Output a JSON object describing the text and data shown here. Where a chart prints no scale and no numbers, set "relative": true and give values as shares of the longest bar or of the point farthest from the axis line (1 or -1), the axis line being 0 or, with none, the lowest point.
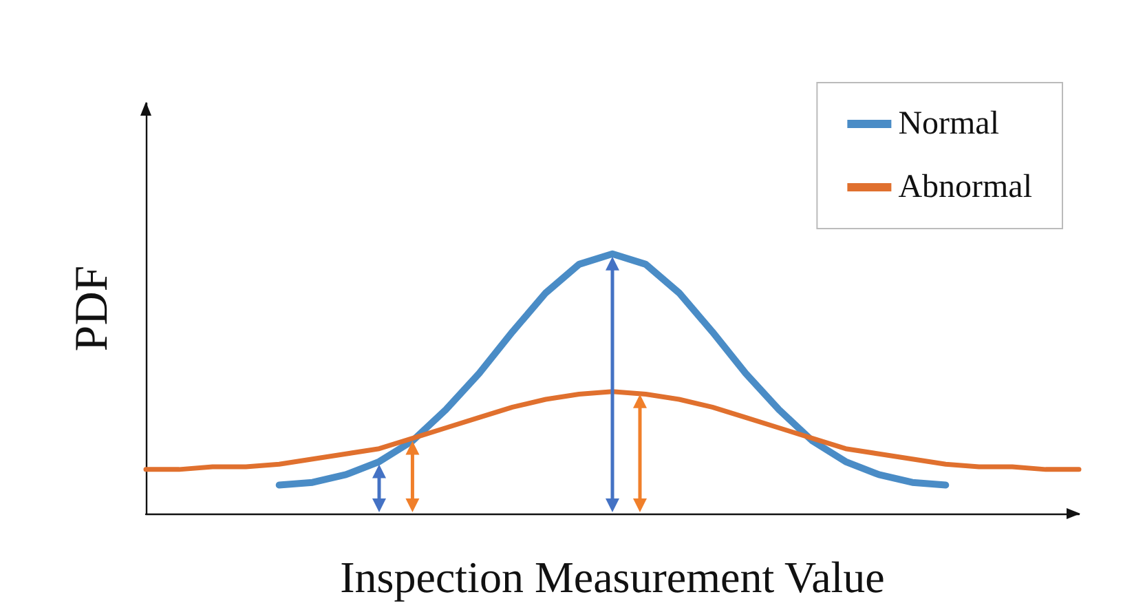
{
  "chart_data": {
    "type": "line",
    "relative": true,
    "xlabel": "Inspection Measurement Value",
    "ylabel": "PDF",
    "categories": [
      null,
      null,
      null,
      null,
      null,
      null,
      null,
      null,
      null,
      null,
      null,
      null,
      null,
      null,
      null,
      null,
      null,
      null,
      null,
      null,
      null,
      null,
      null,
      null,
      null,
      null,
      null,
      null,
      null
    ],
    "series": [
      {
        "name": "Normal",
        "color": "#4a8cc6",
        "values": [
          null,
          null,
          null,
          null,
          0.11,
          0.12,
          0.15,
          0.2,
          0.28,
          0.4,
          0.54,
          0.7,
          0.85,
          0.96,
          1.0,
          0.96,
          0.85,
          0.7,
          0.54,
          0.4,
          0.28,
          0.2,
          0.15,
          0.12,
          0.11,
          null,
          null,
          null,
          null
        ]
      },
      {
        "name": "Abnormal",
        "color": "#e0702e",
        "values": [
          0.17,
          0.17,
          0.18,
          0.18,
          0.19,
          0.21,
          0.23,
          0.25,
          0.29,
          0.33,
          0.37,
          0.41,
          0.44,
          0.46,
          0.47,
          0.46,
          0.44,
          0.41,
          0.37,
          0.33,
          0.29,
          0.25,
          0.23,
          0.21,
          0.19,
          0.18,
          0.18,
          0.17,
          0.17
        ]
      }
    ],
    "legend": "top right",
    "grid": false,
    "marker": "none",
    "line_style": "solid"
  }
}
